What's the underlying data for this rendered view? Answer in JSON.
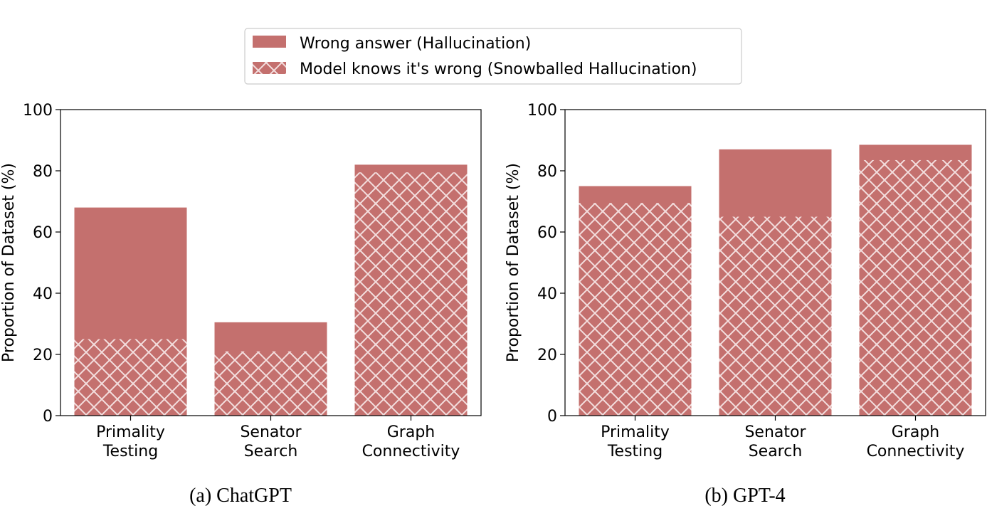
{
  "legend": {
    "items": [
      {
        "label": "Wrong answer (Hallucination)",
        "style": "solid"
      },
      {
        "label": "Model knows it's wrong (Snowballed Hallucination)",
        "style": "hatched"
      }
    ]
  },
  "colors": {
    "bar": "#c4706e",
    "hatch": "#f3dede"
  },
  "chart_data": [
    {
      "type": "bar",
      "caption": "(a) ChatGPT",
      "ylabel": "Proportion of Dataset (%)",
      "ylim": [
        0,
        100
      ],
      "yticks": [
        0,
        20,
        40,
        60,
        80,
        100
      ],
      "categories": [
        [
          "Primality",
          "Testing"
        ],
        [
          "Senator",
          "Search"
        ],
        [
          "Graph",
          "Connectivity"
        ]
      ],
      "series": [
        {
          "name": "Wrong answer (Hallucination)",
          "values": [
            68,
            30.5,
            82
          ]
        },
        {
          "name": "Model knows it's wrong (Snowballed Hallucination)",
          "values": [
            25,
            21,
            79.5
          ]
        }
      ]
    },
    {
      "type": "bar",
      "caption": "(b) GPT-4",
      "ylabel": "Proportion of Dataset (%)",
      "ylim": [
        0,
        100
      ],
      "yticks": [
        0,
        20,
        40,
        60,
        80,
        100
      ],
      "categories": [
        [
          "Primality",
          "Testing"
        ],
        [
          "Senator",
          "Search"
        ],
        [
          "Graph",
          "Connectivity"
        ]
      ],
      "series": [
        {
          "name": "Wrong answer (Hallucination)",
          "values": [
            75,
            87,
            88.5
          ]
        },
        {
          "name": "Model knows it's wrong (Snowballed Hallucination)",
          "values": [
            69.5,
            65,
            83.5
          ]
        }
      ]
    }
  ]
}
